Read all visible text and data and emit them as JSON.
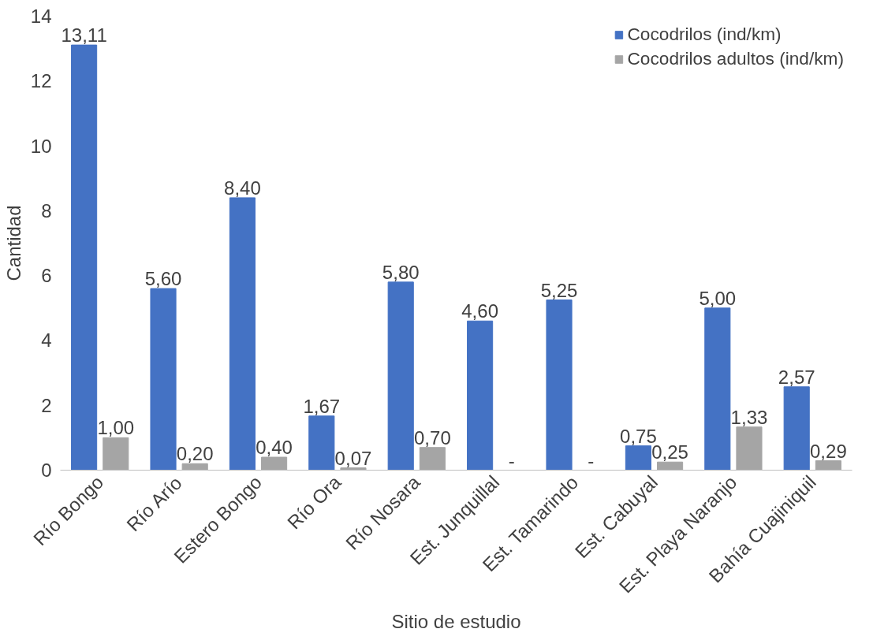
{
  "chart_data": {
    "type": "bar",
    "xlabel": "Sitio de estudio",
    "ylabel": "Cantidad",
    "categories": [
      "Río Bongo",
      "Río Arío",
      "Estero Bongo",
      "Río Ora",
      "Río Nosara",
      "Est. Junquillal",
      "Est. Tamarindo",
      "Est. Cabuyal",
      "Est. Playa Naranjo",
      "Bahía Cuajiniquil"
    ],
    "series": [
      {
        "name": "Cocodrilos (ind/km)",
        "color": "#4472c4",
        "values": [
          13.11,
          5.6,
          8.4,
          1.67,
          5.8,
          4.6,
          5.25,
          0.75,
          5.0,
          2.57
        ],
        "value_labels": [
          "13,11",
          "5,60",
          "8,40",
          "1,67",
          "5,80",
          "4,60",
          "5,25",
          "0,75",
          "5,00",
          "2,57"
        ]
      },
      {
        "name": "Cocodrilos adultos (ind/km)",
        "color": "#a5a5a5",
        "values": [
          1.0,
          0.2,
          0.4,
          0.07,
          0.7,
          null,
          null,
          0.25,
          1.33,
          0.29
        ],
        "value_labels": [
          "1,00",
          "0,20",
          "0,40",
          "0,07",
          "0,70",
          "-",
          "-",
          "0,25",
          "1,33",
          "0,29"
        ]
      }
    ],
    "ylim": [
      0,
      14
    ],
    "yticks": [
      0,
      2,
      4,
      6,
      8,
      10,
      12,
      14
    ],
    "legend": "top right"
  }
}
